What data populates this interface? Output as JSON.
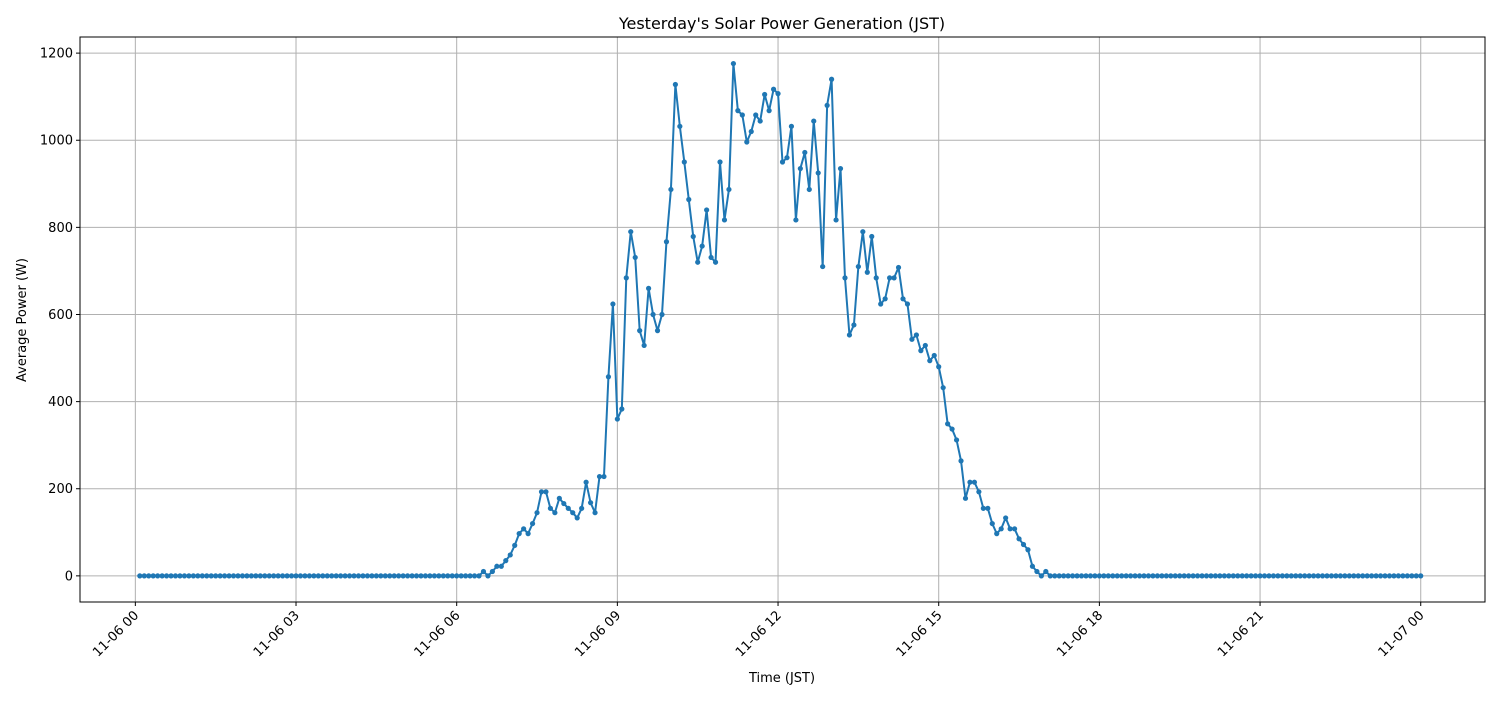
{
  "chart_data": {
    "type": "line",
    "title": "Yesterday's Solar Power Generation (JST)",
    "xlabel": "Time (JST)",
    "ylabel": "Average Power (W)",
    "xlim": [
      "11-05 22:58",
      "11-07 01:12"
    ],
    "ylim": [
      -60,
      1237
    ],
    "grid": true,
    "line_color": "#1f77b4",
    "marker": "circle",
    "x_ticks": [
      "11-06 00:00",
      "11-06 03:00",
      "11-06 06:00",
      "11-06 09:00",
      "11-06 12:00",
      "11-06 15:00",
      "11-06 18:00",
      "11-06 21:00",
      "11-07 00:00"
    ],
    "x_tick_labels": [
      "11-06 00",
      "11-06 03",
      "11-06 06",
      "11-06 09",
      "11-06 12",
      "11-06 15",
      "11-06 18",
      "11-06 21",
      "11-07 00"
    ],
    "y_ticks": [
      0,
      200,
      400,
      600,
      800,
      1000,
      1200
    ],
    "y_tick_labels": [
      "0",
      "200",
      "400",
      "600",
      "800",
      "1000",
      "1200"
    ],
    "x": [
      "11-06 00:05",
      "11-06 00:10",
      "11-06 00:15",
      "11-06 00:20",
      "11-06 00:25",
      "11-06 00:30",
      "11-06 00:35",
      "11-06 00:40",
      "11-06 00:45",
      "11-06 00:50",
      "11-06 00:55",
      "11-06 01:00",
      "11-06 01:05",
      "11-06 01:10",
      "11-06 01:15",
      "11-06 01:20",
      "11-06 01:25",
      "11-06 01:30",
      "11-06 01:35",
      "11-06 01:40",
      "11-06 01:45",
      "11-06 01:50",
      "11-06 01:55",
      "11-06 02:00",
      "11-06 02:05",
      "11-06 02:10",
      "11-06 02:15",
      "11-06 02:20",
      "11-06 02:25",
      "11-06 02:30",
      "11-06 02:35",
      "11-06 02:40",
      "11-06 02:45",
      "11-06 02:50",
      "11-06 02:55",
      "11-06 03:00",
      "11-06 03:05",
      "11-06 03:10",
      "11-06 03:15",
      "11-06 03:20",
      "11-06 03:25",
      "11-06 03:30",
      "11-06 03:35",
      "11-06 03:40",
      "11-06 03:45",
      "11-06 03:50",
      "11-06 03:55",
      "11-06 04:00",
      "11-06 04:05",
      "11-06 04:10",
      "11-06 04:15",
      "11-06 04:20",
      "11-06 04:25",
      "11-06 04:30",
      "11-06 04:35",
      "11-06 04:40",
      "11-06 04:45",
      "11-06 04:50",
      "11-06 04:55",
      "11-06 05:00",
      "11-06 05:05",
      "11-06 05:10",
      "11-06 05:15",
      "11-06 05:20",
      "11-06 05:25",
      "11-06 05:30",
      "11-06 05:35",
      "11-06 05:40",
      "11-06 05:45",
      "11-06 05:50",
      "11-06 05:55",
      "11-06 06:00",
      "11-06 06:05",
      "11-06 06:10",
      "11-06 06:15",
      "11-06 06:20",
      "11-06 06:25",
      "11-06 06:30",
      "11-06 06:35",
      "11-06 06:40",
      "11-06 06:45",
      "11-06 06:50",
      "11-06 06:55",
      "11-06 07:00",
      "11-06 07:05",
      "11-06 07:10",
      "11-06 07:15",
      "11-06 07:20",
      "11-06 07:25",
      "11-06 07:30",
      "11-06 07:35",
      "11-06 07:40",
      "11-06 07:45",
      "11-06 07:50",
      "11-06 07:55",
      "11-06 08:00",
      "11-06 08:05",
      "11-06 08:10",
      "11-06 08:15",
      "11-06 08:20",
      "11-06 08:25",
      "11-06 08:30",
      "11-06 08:35",
      "11-06 08:40",
      "11-06 08:45",
      "11-06 08:50",
      "11-06 08:55",
      "11-06 09:00",
      "11-06 09:05",
      "11-06 09:10",
      "11-06 09:15",
      "11-06 09:20",
      "11-06 09:25",
      "11-06 09:30",
      "11-06 09:35",
      "11-06 09:40",
      "11-06 09:45",
      "11-06 09:50",
      "11-06 09:55",
      "11-06 10:00",
      "11-06 10:05",
      "11-06 10:10",
      "11-06 10:15",
      "11-06 10:20",
      "11-06 10:25",
      "11-06 10:30",
      "11-06 10:35",
      "11-06 10:40",
      "11-06 10:45",
      "11-06 10:50",
      "11-06 10:55",
      "11-06 11:00",
      "11-06 11:05",
      "11-06 11:10",
      "11-06 11:15",
      "11-06 11:20",
      "11-06 11:25",
      "11-06 11:30",
      "11-06 11:35",
      "11-06 11:40",
      "11-06 11:45",
      "11-06 11:50",
      "11-06 11:55",
      "11-06 12:00",
      "11-06 12:05",
      "11-06 12:10",
      "11-06 12:15",
      "11-06 12:20",
      "11-06 12:25",
      "11-06 12:30",
      "11-06 12:35",
      "11-06 12:40",
      "11-06 12:45",
      "11-06 12:50",
      "11-06 12:55",
      "11-06 13:00",
      "11-06 13:05",
      "11-06 13:10",
      "11-06 13:15",
      "11-06 13:20",
      "11-06 13:25",
      "11-06 13:30",
      "11-06 13:35",
      "11-06 13:40",
      "11-06 13:45",
      "11-06 13:50",
      "11-06 13:55",
      "11-06 14:00",
      "11-06 14:05",
      "11-06 14:10",
      "11-06 14:15",
      "11-06 14:20",
      "11-06 14:25",
      "11-06 14:30",
      "11-06 14:35",
      "11-06 14:40",
      "11-06 14:45",
      "11-06 14:50",
      "11-06 14:55",
      "11-06 15:00",
      "11-06 15:05",
      "11-06 15:10",
      "11-06 15:15",
      "11-06 15:20",
      "11-06 15:25",
      "11-06 15:30",
      "11-06 15:35",
      "11-06 15:40",
      "11-06 15:45",
      "11-06 15:50",
      "11-06 15:55",
      "11-06 16:00",
      "11-06 16:05",
      "11-06 16:10",
      "11-06 16:15",
      "11-06 16:20",
      "11-06 16:25",
      "11-06 16:30",
      "11-06 16:35",
      "11-06 16:40",
      "11-06 16:45",
      "11-06 16:50",
      "11-06 16:55",
      "11-06 17:00",
      "11-06 17:05",
      "11-06 17:10",
      "11-06 17:15",
      "11-06 17:20",
      "11-06 17:25",
      "11-06 17:30",
      "11-06 17:35",
      "11-06 17:40",
      "11-06 17:45",
      "11-06 17:50",
      "11-06 17:55",
      "11-06 18:00",
      "11-06 18:05",
      "11-06 18:10",
      "11-06 18:15",
      "11-06 18:20",
      "11-06 18:25",
      "11-06 18:30",
      "11-06 18:35",
      "11-06 18:40",
      "11-06 18:45",
      "11-06 18:50",
      "11-06 18:55",
      "11-06 19:00",
      "11-06 19:05",
      "11-06 19:10",
      "11-06 19:15",
      "11-06 19:20",
      "11-06 19:25",
      "11-06 19:30",
      "11-06 19:35",
      "11-06 19:40",
      "11-06 19:45",
      "11-06 19:50",
      "11-06 19:55",
      "11-06 20:00",
      "11-06 20:05",
      "11-06 20:10",
      "11-06 20:15",
      "11-06 20:20",
      "11-06 20:25",
      "11-06 20:30",
      "11-06 20:35",
      "11-06 20:40",
      "11-06 20:45",
      "11-06 20:50",
      "11-06 20:55",
      "11-06 21:00",
      "11-06 21:05",
      "11-06 21:10",
      "11-06 21:15",
      "11-06 21:20",
      "11-06 21:25",
      "11-06 21:30",
      "11-06 21:35",
      "11-06 21:40",
      "11-06 21:45",
      "11-06 21:50",
      "11-06 21:55",
      "11-06 22:00",
      "11-06 22:05",
      "11-06 22:10",
      "11-06 22:15",
      "11-06 22:20",
      "11-06 22:25",
      "11-06 22:30",
      "11-06 22:35",
      "11-06 22:40",
      "11-06 22:45",
      "11-06 22:50",
      "11-06 22:55",
      "11-06 23:00",
      "11-06 23:05",
      "11-06 23:10",
      "11-06 23:15",
      "11-06 23:20",
      "11-06 23:25",
      "11-06 23:30",
      "11-06 23:35",
      "11-06 23:40",
      "11-06 23:45",
      "11-06 23:50",
      "11-06 23:55",
      "11-07 00:00"
    ],
    "values": [
      0,
      0,
      0,
      0,
      0,
      0,
      0,
      0,
      0,
      0,
      0,
      0,
      0,
      0,
      0,
      0,
      0,
      0,
      0,
      0,
      0,
      0,
      0,
      0,
      0,
      0,
      0,
      0,
      0,
      0,
      0,
      0,
      0,
      0,
      0,
      0,
      0,
      0,
      0,
      0,
      0,
      0,
      0,
      0,
      0,
      0,
      0,
      0,
      0,
      0,
      0,
      0,
      0,
      0,
      0,
      0,
      0,
      0,
      0,
      0,
      0,
      0,
      0,
      0,
      0,
      0,
      0,
      0,
      0,
      0,
      0,
      0,
      0,
      0,
      0,
      0,
      0,
      10,
      0,
      10,
      22,
      22,
      35,
      48,
      70,
      97,
      108,
      97,
      120,
      145,
      193,
      193,
      155,
      145,
      178,
      166,
      155,
      145,
      133,
      155,
      215,
      168,
      145,
      228,
      228,
      457,
      624,
      360,
      383,
      684,
      790,
      731,
      563,
      529,
      660,
      600,
      563,
      600,
      767,
      887,
      1128,
      1032,
      950,
      864,
      779,
      720,
      757,
      840,
      731,
      720,
      950,
      817,
      887,
      1176,
      1068,
      1058,
      996,
      1020,
      1058,
      1044,
      1105,
      1068,
      1117,
      1107,
      950,
      960,
      1032,
      817,
      935,
      972,
      887,
      1044,
      925,
      710,
      1080,
      1140,
      817,
      935,
      684,
      553,
      576,
      710,
      790,
      697,
      779,
      684,
      624,
      636,
      684,
      684,
      708,
      636,
      624,
      543,
      553,
      517,
      529,
      494,
      506,
      480,
      432,
      349,
      337,
      312,
      264,
      178,
      215,
      215,
      193,
      155,
      155,
      120,
      97,
      108,
      133,
      108,
      108,
      85,
      72,
      60,
      22,
      10,
      0,
      10,
      0,
      0,
      0,
      0,
      0,
      0,
      0,
      0,
      0,
      0,
      0,
      0,
      0,
      0,
      0,
      0,
      0,
      0,
      0,
      0,
      0,
      0,
      0,
      0,
      0,
      0,
      0,
      0,
      0,
      0,
      0,
      0,
      0,
      0,
      0,
      0,
      0,
      0,
      0,
      0,
      0,
      0,
      0,
      0,
      0,
      0,
      0,
      0,
      0,
      0,
      0,
      0,
      0,
      0,
      0,
      0,
      0,
      0,
      0,
      0,
      0,
      0,
      0,
      0,
      0,
      0,
      0,
      0,
      0,
      0,
      0,
      0,
      0,
      0,
      0,
      0,
      0,
      0,
      0,
      0,
      0,
      0,
      0,
      0
    ]
  }
}
